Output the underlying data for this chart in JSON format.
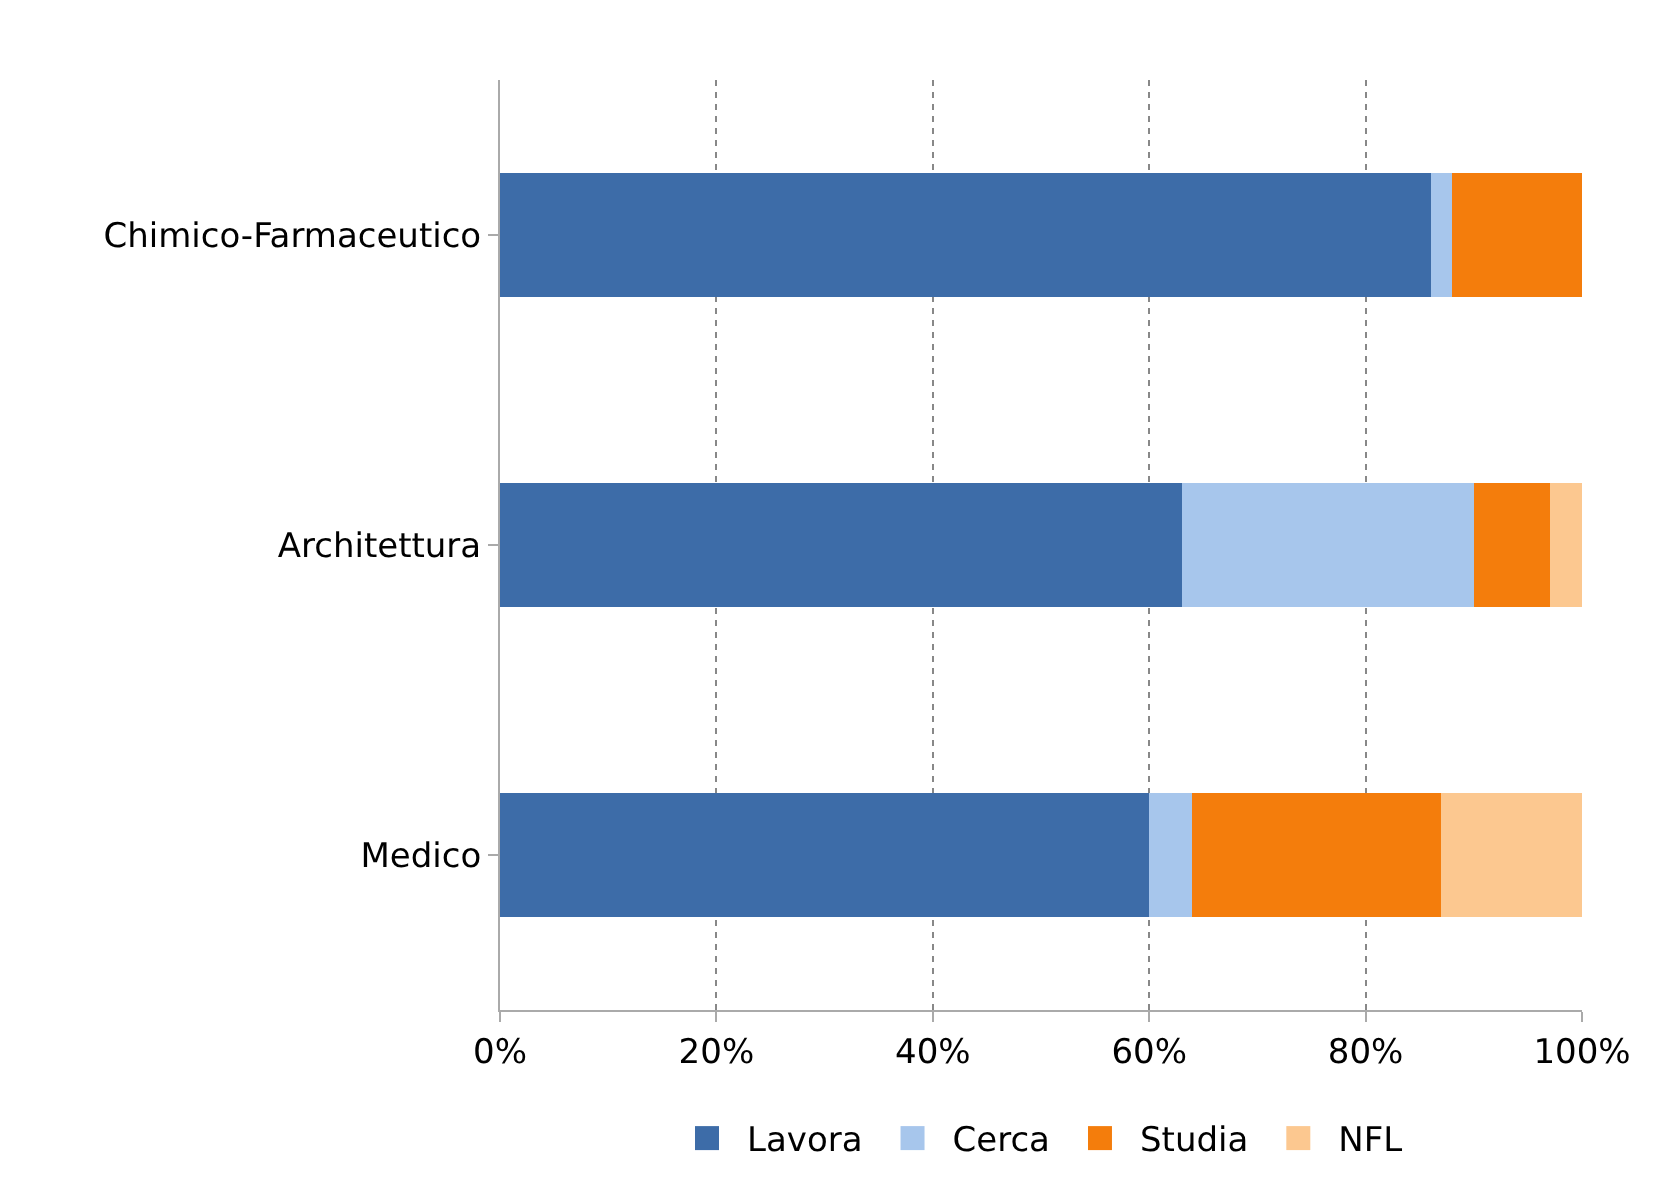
{
  "chart_data": {
    "type": "bar",
    "orientation": "horizontal",
    "stacked": true,
    "categories": [
      "Chimico-Farmaceutico",
      "Architettura",
      "Medico"
    ],
    "series": [
      {
        "name": "Lavora",
        "color": "#3d6ca8",
        "values": [
          86,
          63,
          60
        ]
      },
      {
        "name": "Cerca",
        "color": "#a7c6ec",
        "values": [
          2,
          27,
          4
        ]
      },
      {
        "name": "Studia",
        "color": "#f47d0c",
        "values": [
          12,
          7,
          23
        ]
      },
      {
        "name": "NFL",
        "color": "#fcc890",
        "values": [
          0,
          3,
          13
        ]
      }
    ],
    "xlim": [
      0,
      100
    ],
    "xticks": [
      {
        "value": 0,
        "label": "0%"
      },
      {
        "value": 20,
        "label": "20%"
      },
      {
        "value": 40,
        "label": "40%"
      },
      {
        "value": 60,
        "label": "60%"
      },
      {
        "value": 80,
        "label": "80%"
      },
      {
        "value": 100,
        "label": "100%"
      }
    ],
    "grid": "x",
    "legend": "bottom"
  }
}
